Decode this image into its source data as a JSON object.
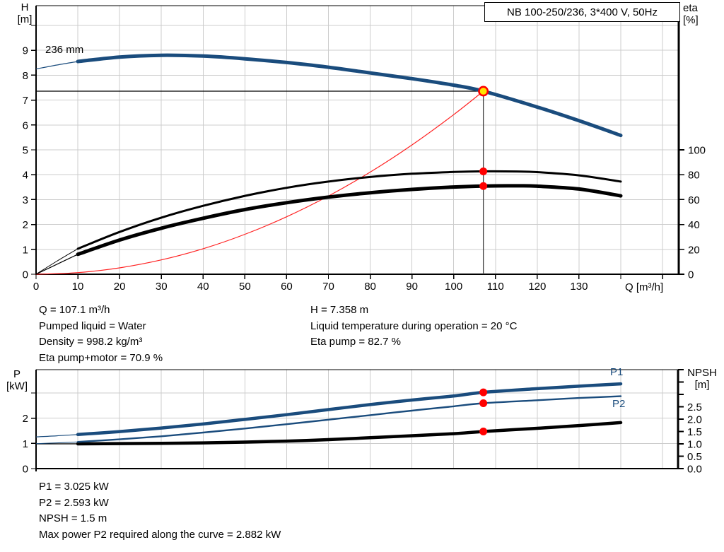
{
  "header": {
    "title": "NB 100-250/236, 3*400 V, 50Hz"
  },
  "axis_labels": {
    "h_top": "H",
    "h_unit": "[m]",
    "eta_top": "eta",
    "eta_unit": "[%]",
    "q": "Q [m³/h]",
    "p_top": "P",
    "p_unit": "[kW]",
    "npsh_top": "NPSH",
    "npsh_unit": "[m]"
  },
  "curve_labels": {
    "impeller": "236 mm",
    "p1": "P1",
    "p2": "P2"
  },
  "info_top": {
    "left": [
      "Q = 107.1 m³/h",
      "Pumped liquid = Water",
      "Density = 998.2 kg/m³",
      "Eta pump+motor = 70.9 %"
    ],
    "right": [
      "H = 7.358 m",
      "Liquid temperature during operation = 20 °C",
      "Eta pump = 82.7 %"
    ]
  },
  "info_bottom": [
    "P1 = 3.025 kW",
    "P2 = 2.593 kW",
    "NPSH = 1.5 m",
    "Max power P2 required along the curve = 2.882 kW"
  ],
  "colors": {
    "blue": "#1a4c7d",
    "red_line": "#ff2222",
    "dot_red": "#ff0000",
    "marker_yellow": "#ffe400",
    "grid": "#cccccc",
    "axis": "#000000",
    "op_line": "#444444"
  },
  "operating_point": {
    "Q": 107.1,
    "H": 7.358,
    "eta_pump": 82.7,
    "eta_pump_motor": 70.9,
    "P1": 3.025,
    "P2": 2.593,
    "NPSH": 1.5
  },
  "chart_data": [
    {
      "type": "line",
      "title": "NB 100-250/236, 3*400 V, 50Hz",
      "xlabel": "Q [m³/h]",
      "ylabel_left": "H [m]",
      "ylabel_right": "eta [%]",
      "xlim": [
        0,
        153.9
      ],
      "ylim_left": [
        0,
        10.8
      ],
      "ylim_right": [
        0,
        100
      ],
      "grid": true,
      "x_ticks": [
        0,
        10,
        20,
        30,
        40,
        50,
        60,
        70,
        80,
        90,
        100,
        110,
        120,
        130,
        140,
        150
      ],
      "x_tick_labels": [
        "0",
        "10",
        "20",
        "30",
        "40",
        "50",
        "60",
        "70",
        "80",
        "90",
        "100",
        "110",
        "120",
        "130",
        "",
        ""
      ],
      "h_ticks": [
        0,
        1,
        2,
        3,
        4,
        5,
        6,
        7,
        8,
        9,
        10
      ],
      "h_tick_labels": [
        "0",
        "1",
        "2",
        "3",
        "4",
        "5",
        "6",
        "7",
        "8",
        "9",
        ""
      ],
      "eta_ticks": [
        0,
        20,
        40,
        60,
        80,
        100
      ],
      "eta_tick_labels": [
        "0",
        "20",
        "40",
        "60",
        "80",
        "100"
      ],
      "series": [
        {
          "name": "system_curve",
          "axis": "H",
          "color": "red_line",
          "width": 1.2,
          "thick_from": null,
          "points": [
            [
              0,
              0
            ],
            [
              10,
              0.064
            ],
            [
              20,
              0.257
            ],
            [
              30,
              0.577
            ],
            [
              40,
              1.026
            ],
            [
              50,
              1.604
            ],
            [
              60,
              2.309
            ],
            [
              70,
              3.143
            ],
            [
              80,
              4.105
            ],
            [
              90,
              5.195
            ],
            [
              100,
              6.414
            ],
            [
              107.1,
              7.358
            ]
          ]
        },
        {
          "name": "eta_pump",
          "axis": "eta",
          "color": "axis",
          "width": 3,
          "thin_width": 1,
          "thick_from": 10,
          "points": [
            [
              0,
              0
            ],
            [
              5,
              10.5
            ],
            [
              10,
              20.5
            ],
            [
              20,
              34
            ],
            [
              30,
              45.5
            ],
            [
              40,
              55
            ],
            [
              50,
              63
            ],
            [
              60,
              69.5
            ],
            [
              70,
              74.5
            ],
            [
              80,
              78.2
            ],
            [
              90,
              80.8
            ],
            [
              100,
              82.2
            ],
            [
              107.1,
              82.7
            ],
            [
              115,
              82.6
            ],
            [
              120,
              82.1
            ],
            [
              130,
              79.5
            ],
            [
              140,
              74.5
            ]
          ]
        },
        {
          "name": "eta_pump_motor",
          "axis": "eta",
          "color": "axis",
          "width": 5,
          "thin_width": 1.2,
          "thick_from": 10,
          "points": [
            [
              0,
              0
            ],
            [
              5,
              8
            ],
            [
              10,
              16
            ],
            [
              20,
              27.5
            ],
            [
              30,
              37
            ],
            [
              40,
              45
            ],
            [
              50,
              52
            ],
            [
              60,
              57.5
            ],
            [
              70,
              62
            ],
            [
              80,
              65.5
            ],
            [
              90,
              68.2
            ],
            [
              100,
              70.1
            ],
            [
              107.1,
              70.9
            ],
            [
              115,
              71.1
            ],
            [
              120,
              70.8
            ],
            [
              130,
              68.5
            ],
            [
              140,
              63
            ]
          ]
        },
        {
          "name": "head_236mm",
          "axis": "H",
          "color": "blue",
          "width": 5,
          "thin_width": 1.2,
          "thick_from": 10,
          "points": [
            [
              0,
              8.25
            ],
            [
              5,
              8.41
            ],
            [
              10,
              8.55
            ],
            [
              20,
              8.73
            ],
            [
              30,
              8.8
            ],
            [
              40,
              8.77
            ],
            [
              50,
              8.66
            ],
            [
              60,
              8.51
            ],
            [
              70,
              8.32
            ],
            [
              80,
              8.09
            ],
            [
              90,
              7.86
            ],
            [
              100,
              7.6
            ],
            [
              107.1,
              7.358
            ],
            [
              120,
              6.72
            ],
            [
              130,
              6.17
            ],
            [
              140,
              5.58
            ]
          ]
        }
      ]
    },
    {
      "type": "line",
      "xlabel": "",
      "ylabel_left": "P [kW]",
      "ylabel_right": "NPSH [m]",
      "xlim": [
        0,
        153.7
      ],
      "ylim_left": [
        0,
        3.92
      ],
      "ylim_right": [
        0,
        4.0
      ],
      "grid": true,
      "p_ticks": [
        0,
        1,
        2,
        3
      ],
      "p_tick_labels": [
        "0",
        "1",
        "2",
        ""
      ],
      "npsh_ticks": [
        0,
        0.5,
        1,
        1.5,
        2,
        2.5,
        3,
        3.5,
        4
      ],
      "npsh_tick_labels": [
        "0.0",
        "0.5",
        "1.0",
        "1.5",
        "2.0",
        "2.5",
        "",
        "",
        ""
      ],
      "series": [
        {
          "name": "npsh",
          "axis": "NPSH",
          "color": "axis",
          "width": 4.5,
          "thin_width": 1.2,
          "thick_from": 10,
          "points": [
            [
              0,
              1.0
            ],
            [
              5,
              1.0
            ],
            [
              10,
              1.0
            ],
            [
              20,
              1.01
            ],
            [
              30,
              1.02
            ],
            [
              40,
              1.04
            ],
            [
              50,
              1.07
            ],
            [
              60,
              1.11
            ],
            [
              70,
              1.17
            ],
            [
              80,
              1.25
            ],
            [
              90,
              1.33
            ],
            [
              100,
              1.41
            ],
            [
              107.1,
              1.5
            ],
            [
              120,
              1.63
            ],
            [
              130,
              1.74
            ],
            [
              140,
              1.86
            ]
          ]
        },
        {
          "name": "p2",
          "axis": "P",
          "color": "blue",
          "width": 2.4,
          "thin_width": 1,
          "thick_from": 10,
          "points": [
            [
              0,
              0.99
            ],
            [
              5,
              1.02
            ],
            [
              10,
              1.06
            ],
            [
              20,
              1.16
            ],
            [
              30,
              1.28
            ],
            [
              40,
              1.43
            ],
            [
              50,
              1.59
            ],
            [
              60,
              1.76
            ],
            [
              70,
              1.94
            ],
            [
              80,
              2.12
            ],
            [
              90,
              2.3
            ],
            [
              100,
              2.47
            ],
            [
              107.1,
              2.593
            ],
            [
              120,
              2.71
            ],
            [
              130,
              2.8
            ],
            [
              140,
              2.87
            ]
          ]
        },
        {
          "name": "p1",
          "axis": "P",
          "color": "blue",
          "width": 4.5,
          "thin_width": 1.2,
          "thick_from": 10,
          "points": [
            [
              0,
              1.26
            ],
            [
              5,
              1.3
            ],
            [
              10,
              1.35
            ],
            [
              20,
              1.47
            ],
            [
              30,
              1.61
            ],
            [
              40,
              1.77
            ],
            [
              50,
              1.95
            ],
            [
              60,
              2.14
            ],
            [
              70,
              2.34
            ],
            [
              80,
              2.54
            ],
            [
              90,
              2.72
            ],
            [
              100,
              2.88
            ],
            [
              107.1,
              3.025
            ],
            [
              120,
              3.17
            ],
            [
              130,
              3.27
            ],
            [
              140,
              3.36
            ]
          ]
        }
      ]
    }
  ]
}
